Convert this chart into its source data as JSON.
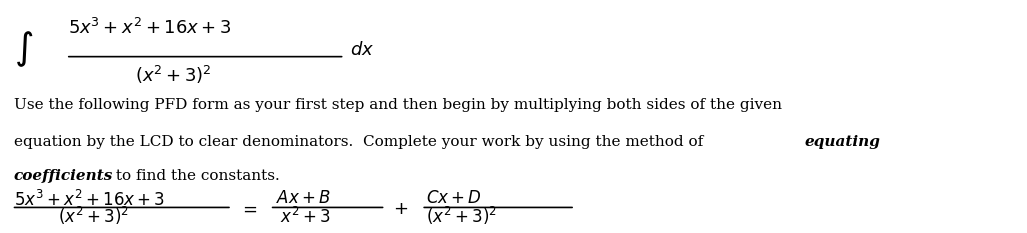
{
  "background_color": "#ffffff",
  "figsize": [
    10.27,
    2.33
  ],
  "dpi": 100,
  "integral_line1": "$5x^3 + x^2 + 16x + 3$",
  "integral_line2": "$(x^2 + 3)^2$",
  "integral_dx": "$dx$",
  "paragraph": "Use the following PFD form as your first step and then begin by multiplying both sides of the given\nequation by the LCD to clear denominators.  Complete your work by using the method of ",
  "italic_part1": "equating",
  "paragraph2": "\n",
  "italic_part2": "coefficients",
  "paragraph3": " to find the constants.",
  "pfd_lhs_num": "$5x^3 + x^2 + 16x + 3$",
  "pfd_lhs_den": "$(x^2 + 3)^2$",
  "pfd_rhs1_num": "$Ax + B$",
  "pfd_rhs1_den": "$x^2 + 3$",
  "pfd_rhs2_num": "$Cx + D$",
  "pfd_rhs2_den": "$(x^2 + 3)^2$",
  "text_color": "#000000",
  "font_size_integral": 13,
  "font_size_body": 11,
  "font_size_pfd": 12
}
